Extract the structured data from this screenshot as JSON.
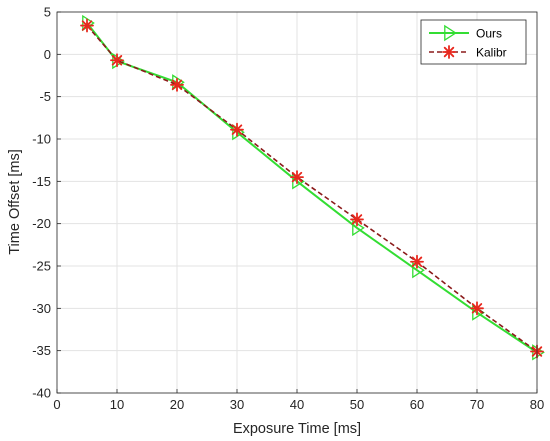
{
  "chart_data": {
    "type": "line",
    "title": "",
    "xlabel": "Exposure Time [ms]",
    "ylabel": "Time Offset [ms]",
    "xlim": [
      0,
      80
    ],
    "ylim": [
      -40,
      5
    ],
    "xticks": [
      0,
      10,
      20,
      30,
      40,
      50,
      60,
      70,
      80
    ],
    "yticks": [
      5,
      0,
      -5,
      -10,
      -15,
      -20,
      -25,
      -30,
      -35,
      -40
    ],
    "grid": true,
    "legend_position": "top-right",
    "x": [
      5,
      10,
      20,
      30,
      40,
      50,
      60,
      70,
      80
    ],
    "series": [
      {
        "name": "Ours",
        "values": [
          3.7,
          -0.8,
          -3.3,
          -9.2,
          -15.0,
          -20.5,
          -25.5,
          -30.5,
          -35.2
        ],
        "color": "#33dd33",
        "line_style": "solid",
        "marker": "triangle-right"
      },
      {
        "name": "Kalibr",
        "values": [
          3.4,
          -0.7,
          -3.6,
          -8.9,
          -14.5,
          -19.5,
          -24.5,
          -30.0,
          -35.1
        ],
        "color": "#8b1a1a",
        "marker_color": "#e8281e",
        "line_style": "dashed",
        "marker": "asterisk"
      }
    ]
  }
}
